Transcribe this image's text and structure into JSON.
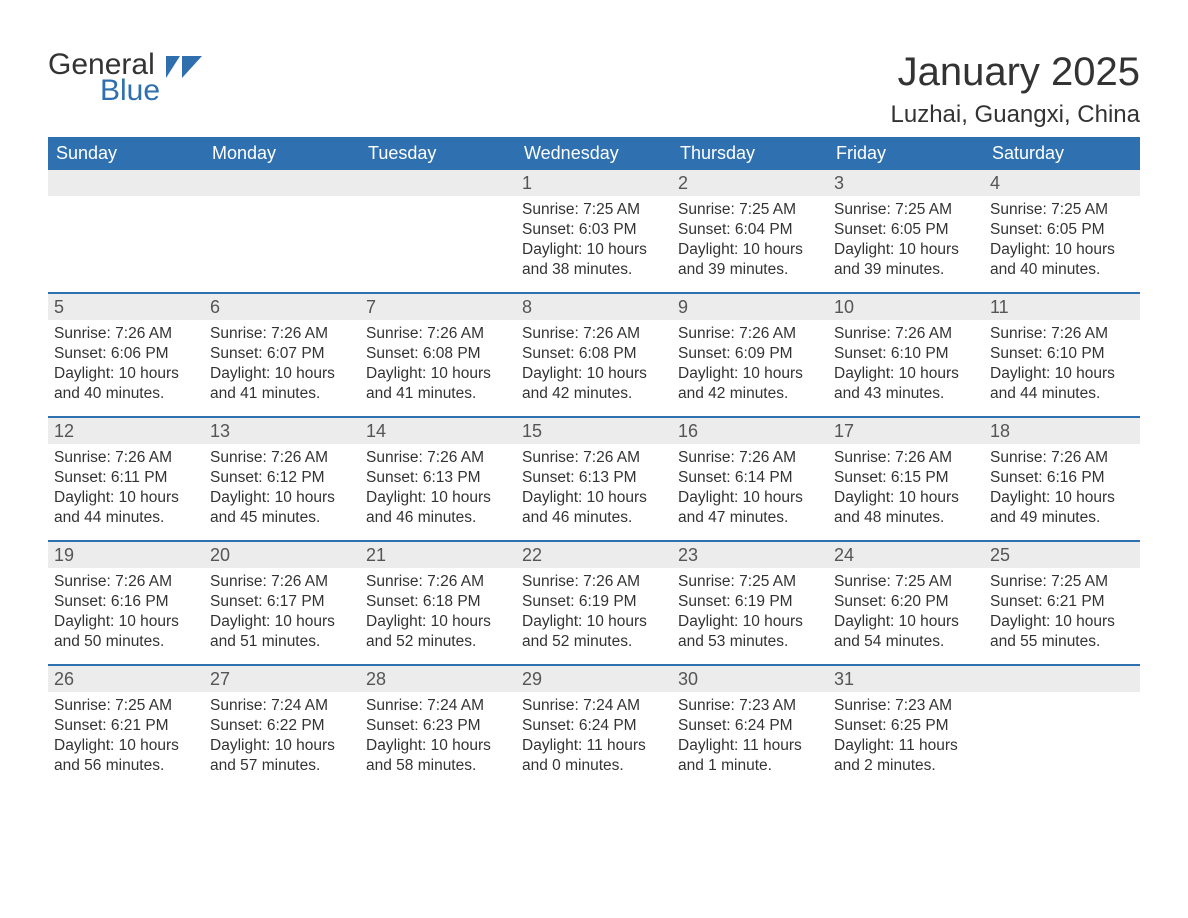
{
  "logo": {
    "word1": "General",
    "word2": "Blue",
    "flag_color": "#2f6fae"
  },
  "title": "January 2025",
  "location": "Luzhai, Guangxi, China",
  "colors": {
    "header_bg": "#2f70b0",
    "header_text": "#ffffff",
    "daynum_bg": "#ececec",
    "daynum_text": "#555555",
    "body_text": "#333333",
    "row_border": "#2f70b0",
    "background": "#ffffff"
  },
  "fonts": {
    "title_size_pt": 30,
    "location_size_pt": 18,
    "day_header_size_pt": 14,
    "daynum_size_pt": 14,
    "body_size_pt": 12
  },
  "day_headers": [
    "Sunday",
    "Monday",
    "Tuesday",
    "Wednesday",
    "Thursday",
    "Friday",
    "Saturday"
  ],
  "weeks": [
    [
      null,
      null,
      null,
      {
        "n": "1",
        "sunrise": "Sunrise: 7:25 AM",
        "sunset": "Sunset: 6:03 PM",
        "daylight": "Daylight: 10 hours and 38 minutes."
      },
      {
        "n": "2",
        "sunrise": "Sunrise: 7:25 AM",
        "sunset": "Sunset: 6:04 PM",
        "daylight": "Daylight: 10 hours and 39 minutes."
      },
      {
        "n": "3",
        "sunrise": "Sunrise: 7:25 AM",
        "sunset": "Sunset: 6:05 PM",
        "daylight": "Daylight: 10 hours and 39 minutes."
      },
      {
        "n": "4",
        "sunrise": "Sunrise: 7:25 AM",
        "sunset": "Sunset: 6:05 PM",
        "daylight": "Daylight: 10 hours and 40 minutes."
      }
    ],
    [
      {
        "n": "5",
        "sunrise": "Sunrise: 7:26 AM",
        "sunset": "Sunset: 6:06 PM",
        "daylight": "Daylight: 10 hours and 40 minutes."
      },
      {
        "n": "6",
        "sunrise": "Sunrise: 7:26 AM",
        "sunset": "Sunset: 6:07 PM",
        "daylight": "Daylight: 10 hours and 41 minutes."
      },
      {
        "n": "7",
        "sunrise": "Sunrise: 7:26 AM",
        "sunset": "Sunset: 6:08 PM",
        "daylight": "Daylight: 10 hours and 41 minutes."
      },
      {
        "n": "8",
        "sunrise": "Sunrise: 7:26 AM",
        "sunset": "Sunset: 6:08 PM",
        "daylight": "Daylight: 10 hours and 42 minutes."
      },
      {
        "n": "9",
        "sunrise": "Sunrise: 7:26 AM",
        "sunset": "Sunset: 6:09 PM",
        "daylight": "Daylight: 10 hours and 42 minutes."
      },
      {
        "n": "10",
        "sunrise": "Sunrise: 7:26 AM",
        "sunset": "Sunset: 6:10 PM",
        "daylight": "Daylight: 10 hours and 43 minutes."
      },
      {
        "n": "11",
        "sunrise": "Sunrise: 7:26 AM",
        "sunset": "Sunset: 6:10 PM",
        "daylight": "Daylight: 10 hours and 44 minutes."
      }
    ],
    [
      {
        "n": "12",
        "sunrise": "Sunrise: 7:26 AM",
        "sunset": "Sunset: 6:11 PM",
        "daylight": "Daylight: 10 hours and 44 minutes."
      },
      {
        "n": "13",
        "sunrise": "Sunrise: 7:26 AM",
        "sunset": "Sunset: 6:12 PM",
        "daylight": "Daylight: 10 hours and 45 minutes."
      },
      {
        "n": "14",
        "sunrise": "Sunrise: 7:26 AM",
        "sunset": "Sunset: 6:13 PM",
        "daylight": "Daylight: 10 hours and 46 minutes."
      },
      {
        "n": "15",
        "sunrise": "Sunrise: 7:26 AM",
        "sunset": "Sunset: 6:13 PM",
        "daylight": "Daylight: 10 hours and 46 minutes."
      },
      {
        "n": "16",
        "sunrise": "Sunrise: 7:26 AM",
        "sunset": "Sunset: 6:14 PM",
        "daylight": "Daylight: 10 hours and 47 minutes."
      },
      {
        "n": "17",
        "sunrise": "Sunrise: 7:26 AM",
        "sunset": "Sunset: 6:15 PM",
        "daylight": "Daylight: 10 hours and 48 minutes."
      },
      {
        "n": "18",
        "sunrise": "Sunrise: 7:26 AM",
        "sunset": "Sunset: 6:16 PM",
        "daylight": "Daylight: 10 hours and 49 minutes."
      }
    ],
    [
      {
        "n": "19",
        "sunrise": "Sunrise: 7:26 AM",
        "sunset": "Sunset: 6:16 PM",
        "daylight": "Daylight: 10 hours and 50 minutes."
      },
      {
        "n": "20",
        "sunrise": "Sunrise: 7:26 AM",
        "sunset": "Sunset: 6:17 PM",
        "daylight": "Daylight: 10 hours and 51 minutes."
      },
      {
        "n": "21",
        "sunrise": "Sunrise: 7:26 AM",
        "sunset": "Sunset: 6:18 PM",
        "daylight": "Daylight: 10 hours and 52 minutes."
      },
      {
        "n": "22",
        "sunrise": "Sunrise: 7:26 AM",
        "sunset": "Sunset: 6:19 PM",
        "daylight": "Daylight: 10 hours and 52 minutes."
      },
      {
        "n": "23",
        "sunrise": "Sunrise: 7:25 AM",
        "sunset": "Sunset: 6:19 PM",
        "daylight": "Daylight: 10 hours and 53 minutes."
      },
      {
        "n": "24",
        "sunrise": "Sunrise: 7:25 AM",
        "sunset": "Sunset: 6:20 PM",
        "daylight": "Daylight: 10 hours and 54 minutes."
      },
      {
        "n": "25",
        "sunrise": "Sunrise: 7:25 AM",
        "sunset": "Sunset: 6:21 PM",
        "daylight": "Daylight: 10 hours and 55 minutes."
      }
    ],
    [
      {
        "n": "26",
        "sunrise": "Sunrise: 7:25 AM",
        "sunset": "Sunset: 6:21 PM",
        "daylight": "Daylight: 10 hours and 56 minutes."
      },
      {
        "n": "27",
        "sunrise": "Sunrise: 7:24 AM",
        "sunset": "Sunset: 6:22 PM",
        "daylight": "Daylight: 10 hours and 57 minutes."
      },
      {
        "n": "28",
        "sunrise": "Sunrise: 7:24 AM",
        "sunset": "Sunset: 6:23 PM",
        "daylight": "Daylight: 10 hours and 58 minutes."
      },
      {
        "n": "29",
        "sunrise": "Sunrise: 7:24 AM",
        "sunset": "Sunset: 6:24 PM",
        "daylight": "Daylight: 11 hours and 0 minutes."
      },
      {
        "n": "30",
        "sunrise": "Sunrise: 7:23 AM",
        "sunset": "Sunset: 6:24 PM",
        "daylight": "Daylight: 11 hours and 1 minute."
      },
      {
        "n": "31",
        "sunrise": "Sunrise: 7:23 AM",
        "sunset": "Sunset: 6:25 PM",
        "daylight": "Daylight: 11 hours and 2 minutes."
      },
      null
    ]
  ]
}
